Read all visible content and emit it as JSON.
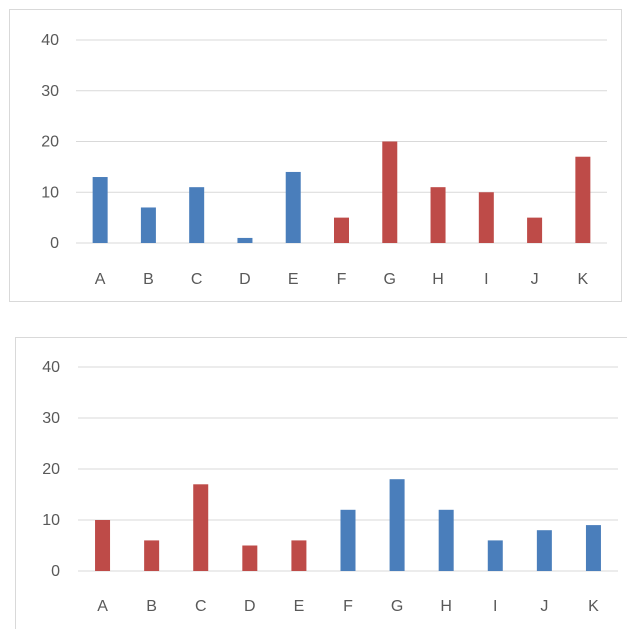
{
  "chart_data": [
    {
      "type": "bar",
      "categories": [
        "A",
        "B",
        "C",
        "D",
        "E",
        "F",
        "G",
        "H",
        "I",
        "J",
        "K"
      ],
      "values": [
        13,
        7,
        11,
        1,
        14,
        5,
        20,
        11,
        10,
        5,
        17
      ],
      "bar_colors": [
        "#4a7ebb",
        "#4a7ebb",
        "#4a7ebb",
        "#4a7ebb",
        "#4a7ebb",
        "#be4b48",
        "#be4b48",
        "#be4b48",
        "#be4b48",
        "#be4b48",
        "#be4b48"
      ],
      "yticks": [
        0,
        10,
        20,
        30,
        40
      ],
      "ylim": [
        0,
        40
      ],
      "grid": true,
      "legend": "none",
      "title": "",
      "xlabel": "",
      "ylabel": ""
    },
    {
      "type": "bar",
      "categories": [
        "A",
        "B",
        "C",
        "D",
        "E",
        "F",
        "G",
        "H",
        "I",
        "J",
        "K"
      ],
      "values": [
        10,
        6,
        17,
        5,
        6,
        12,
        18,
        12,
        6,
        8,
        9
      ],
      "bar_colors": [
        "#be4b48",
        "#be4b48",
        "#be4b48",
        "#be4b48",
        "#be4b48",
        "#4a7ebb",
        "#4a7ebb",
        "#4a7ebb",
        "#4a7ebb",
        "#4a7ebb",
        "#4a7ebb"
      ],
      "yticks": [
        0,
        10,
        20,
        30,
        40
      ],
      "ylim": [
        0,
        40
      ],
      "grid": true,
      "legend": "none",
      "title": "",
      "xlabel": "",
      "ylabel": ""
    }
  ]
}
